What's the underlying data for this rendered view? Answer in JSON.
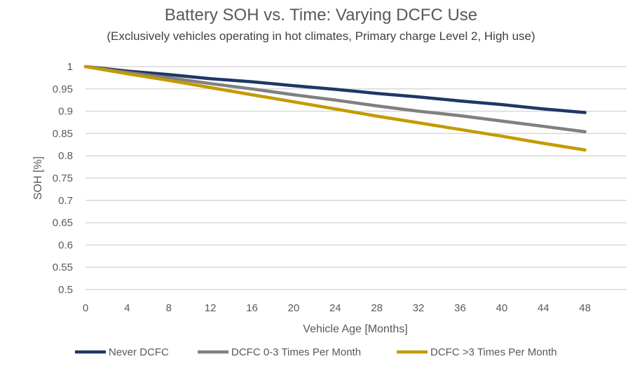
{
  "chart_data": {
    "type": "line",
    "title": "Battery SOH vs. Time: Varying DCFC Use",
    "subtitle": "(Exclusively vehicles operating in hot climates, Primary charge Level 2, High use)",
    "xlabel": "Vehicle Age [Months]",
    "ylabel": "SOH [%]",
    "x": [
      0,
      4,
      8,
      12,
      16,
      20,
      24,
      28,
      32,
      36,
      40,
      44,
      48
    ],
    "xticks": [
      "0",
      "4",
      "8",
      "12",
      "16",
      "20",
      "24",
      "28",
      "32",
      "36",
      "40",
      "44",
      "48"
    ],
    "yticks": [
      "0.5",
      "0.55",
      "0.6",
      "0.65",
      "0.7",
      "0.75",
      "0.8",
      "0.85",
      "0.9",
      "0.95",
      "1"
    ],
    "xlim": [
      0,
      52
    ],
    "ylim": [
      0.5,
      1.0
    ],
    "grid": "horizontal",
    "legend_position": "bottom",
    "series": [
      {
        "name": "Never DCFC",
        "color": "#1f3864",
        "values": [
          1,
          0.99,
          0.982,
          0.973,
          0.966,
          0.957,
          0.949,
          0.94,
          0.932,
          0.923,
          0.915,
          0.905,
          0.897
        ]
      },
      {
        "name": "DCFC 0-3 Times Per Month",
        "color": "#808080",
        "values": [
          1,
          0.987,
          0.975,
          0.962,
          0.95,
          0.937,
          0.925,
          0.912,
          0.9,
          0.89,
          0.878,
          0.866,
          0.854
        ]
      },
      {
        "name": "DCFC >3 Times Per Month",
        "color": "#c49a00",
        "values": [
          1,
          0.984,
          0.969,
          0.953,
          0.937,
          0.921,
          0.905,
          0.889,
          0.874,
          0.859,
          0.844,
          0.828,
          0.813
        ]
      }
    ]
  }
}
